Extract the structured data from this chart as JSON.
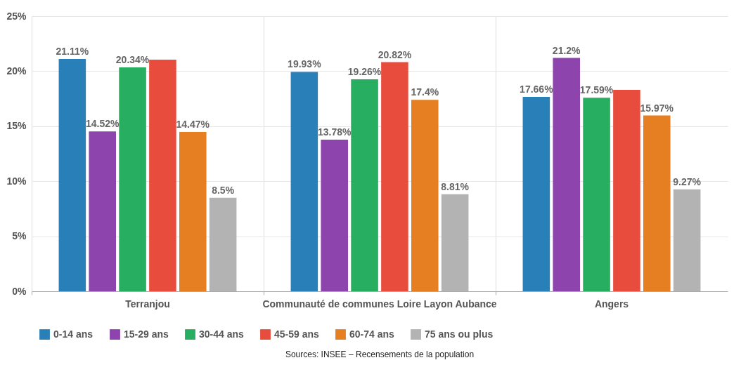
{
  "chart_data": {
    "type": "bar",
    "categories": [
      "Terranjou",
      "Communauté de communes Loire Layon Aubance",
      "Angers"
    ],
    "series": [
      {
        "name": "0-14 ans",
        "color": "#2980b9",
        "values": [
          21.11,
          19.93,
          17.66
        ],
        "value_labels": [
          "21.11%",
          "19.93%",
          "17.66%"
        ]
      },
      {
        "name": "15-29 ans",
        "color": "#8e44ad",
        "values": [
          14.52,
          13.78,
          21.2
        ],
        "value_labels": [
          "14.52%",
          "13.78%",
          "21.2%"
        ]
      },
      {
        "name": "30-44 ans",
        "color": "#27ae60",
        "values": [
          20.34,
          19.26,
          17.59
        ],
        "value_labels": [
          "20.34%",
          "19.26%",
          "17.59%"
        ]
      },
      {
        "name": "45-59 ans",
        "color": "#e74c3c",
        "values": [
          21.05,
          20.82,
          18.3
        ],
        "value_labels": [
          null,
          "20.82%",
          null
        ]
      },
      {
        "name": "60-74 ans",
        "color": "#e67e22",
        "values": [
          14.47,
          17.4,
          15.97
        ],
        "value_labels": [
          "14.47%",
          "17.4%",
          "15.97%"
        ]
      },
      {
        "name": "75 ans ou plus",
        "color": "#b3b3b3",
        "values": [
          8.5,
          8.81,
          9.27
        ],
        "value_labels": [
          "8.5%",
          "8.81%",
          "9.27%"
        ]
      }
    ],
    "ylim": [
      0,
      25
    ],
    "yticks": [
      {
        "value": 0,
        "label": "0%"
      },
      {
        "value": 5,
        "label": "5%"
      },
      {
        "value": 10,
        "label": "10%"
      },
      {
        "value": 15,
        "label": "15%"
      },
      {
        "value": 20,
        "label": "20%"
      },
      {
        "value": 25,
        "label": "25%"
      }
    ],
    "grid": true,
    "legend": "bottom",
    "annotations": [
      "Sources: INSEE – Recensements de la population"
    ]
  }
}
